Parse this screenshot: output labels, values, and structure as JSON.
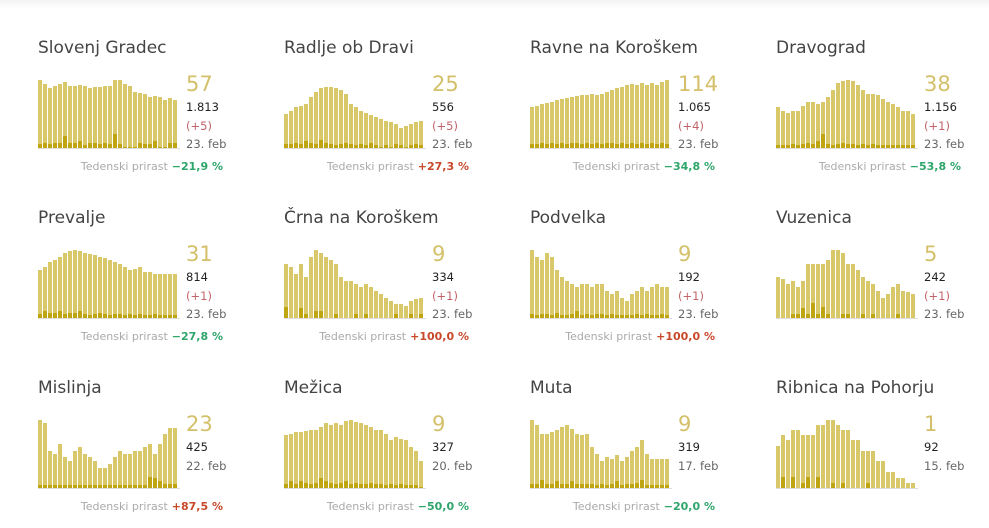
{
  "colors": {
    "bar": "#d9c86a",
    "highlight": "#bfa512",
    "down": "#2ea56b",
    "up": "#c8482a"
  },
  "growth_label": "Tedenski prirast",
  "chart_data": [
    {
      "type": "bar",
      "title": "Slovenj Gradec",
      "big": "57",
      "total": "1.813",
      "delta": "(+5)",
      "date": "23. feb",
      "growth": "−21,9 %",
      "dir": "down",
      "values": [
        100,
        94,
        88,
        91,
        94,
        97,
        91,
        91,
        93,
        91,
        88,
        90,
        90,
        91,
        91,
        100,
        100,
        94,
        91,
        82,
        81,
        79,
        75,
        77,
        75,
        71,
        73,
        71
      ],
      "highlights": [
        6,
        8,
        6,
        8,
        7,
        18,
        8,
        7,
        10,
        5,
        7,
        7,
        6,
        8,
        6,
        20,
        6,
        2,
        2,
        2,
        8,
        6,
        6,
        10,
        2,
        2,
        7,
        7
      ]
    },
    {
      "type": "bar",
      "title": "Radlje ob Dravi",
      "big": "25",
      "total": "556",
      "delta": "(+5)",
      "date": "23. feb",
      "growth": "+27,3 %",
      "dir": "up",
      "values": [
        50,
        55,
        60,
        62,
        65,
        75,
        82,
        88,
        90,
        90,
        88,
        85,
        80,
        65,
        60,
        55,
        52,
        48,
        45,
        42,
        40,
        38,
        35,
        30,
        32,
        35,
        38,
        40
      ],
      "highlights": [
        6,
        6,
        8,
        6,
        10,
        8,
        6,
        12,
        8,
        6,
        4,
        6,
        8,
        6,
        4,
        6,
        4,
        8,
        4,
        2,
        4,
        2,
        6,
        4,
        2,
        4,
        6,
        4
      ]
    },
    {
      "type": "bar",
      "title": "Ravne na Koroškem",
      "big": "114",
      "total": "1.065",
      "delta": "(+4)",
      "date": "23. feb",
      "growth": "−34,8 %",
      "dir": "down",
      "values": [
        60,
        62,
        64,
        66,
        67,
        70,
        72,
        74,
        75,
        76,
        78,
        78,
        80,
        78,
        80,
        82,
        85,
        88,
        90,
        92,
        94,
        92,
        95,
        93,
        95,
        93,
        97,
        100
      ],
      "highlights": [
        6,
        6,
        8,
        6,
        8,
        6,
        8,
        6,
        8,
        8,
        6,
        8,
        6,
        8,
        6,
        8,
        8,
        6,
        8,
        6,
        8,
        6,
        8,
        6,
        8,
        6,
        8,
        6
      ]
    },
    {
      "type": "bar",
      "title": "Dravograd",
      "big": "38",
      "total": "1.156",
      "delta": "(+1)",
      "date": "23. feb",
      "growth": "−53,8 %",
      "dir": "down",
      "values": [
        60,
        55,
        52,
        55,
        55,
        62,
        68,
        68,
        65,
        68,
        75,
        85,
        95,
        98,
        100,
        98,
        92,
        85,
        80,
        80,
        78,
        72,
        68,
        65,
        60,
        55,
        55,
        50
      ],
      "highlights": [
        4,
        4,
        4,
        6,
        4,
        6,
        8,
        6,
        10,
        20,
        6,
        4,
        6,
        8,
        6,
        6,
        4,
        6,
        4,
        6,
        4,
        4,
        4,
        4,
        4,
        4,
        4,
        4
      ]
    },
    {
      "type": "bar",
      "title": "Prevalje",
      "big": "31",
      "total": "814",
      "delta": "(+1)",
      "date": "23. feb",
      "growth": "−27,8 %",
      "dir": "down",
      "values": [
        70,
        75,
        82,
        85,
        90,
        95,
        98,
        100,
        98,
        96,
        94,
        92,
        90,
        88,
        85,
        82,
        80,
        75,
        70,
        72,
        75,
        68,
        68,
        65,
        65,
        65,
        65,
        65
      ],
      "highlights": [
        6,
        10,
        8,
        8,
        10,
        6,
        8,
        8,
        10,
        6,
        4,
        6,
        8,
        6,
        4,
        6,
        6,
        4,
        6,
        4,
        6,
        4,
        4,
        6,
        4,
        4,
        4,
        4
      ]
    },
    {
      "type": "bar",
      "title": "Črna na Koroškem",
      "big": "9",
      "total": "334",
      "delta": "(+1)",
      "date": "23. feb",
      "growth": "+100,0 %",
      "dir": "up",
      "values": [
        80,
        75,
        65,
        80,
        60,
        90,
        100,
        95,
        90,
        85,
        80,
        60,
        55,
        55,
        50,
        45,
        50,
        45,
        40,
        35,
        30,
        25,
        20,
        20,
        18,
        25,
        28,
        30
      ],
      "highlights": [
        16,
        0,
        0,
        14,
        6,
        0,
        10,
        10,
        0,
        0,
        6,
        0,
        0,
        0,
        6,
        0,
        6,
        0,
        0,
        0,
        0,
        0,
        6,
        0,
        0,
        6,
        0,
        6
      ]
    },
    {
      "type": "bar",
      "title": "Podvelka",
      "big": "9",
      "total": "192",
      "delta": "(+1)",
      "date": "23. feb",
      "growth": "+100,0 %",
      "dir": "up",
      "values": [
        100,
        90,
        85,
        95,
        90,
        70,
        60,
        55,
        50,
        45,
        50,
        50,
        45,
        50,
        50,
        40,
        35,
        40,
        30,
        25,
        35,
        40,
        45,
        40,
        45,
        50,
        45,
        45
      ],
      "highlights": [
        6,
        4,
        6,
        6,
        4,
        8,
        4,
        4,
        6,
        10,
        4,
        6,
        4,
        6,
        6,
        4,
        6,
        4,
        4,
        4,
        4,
        6,
        4,
        6,
        4,
        4,
        6,
        4
      ]
    },
    {
      "type": "bar",
      "title": "Vuzenica",
      "big": "5",
      "total": "242",
      "delta": "(+1)",
      "date": "23. feb",
      "growth": "",
      "dir": "",
      "values": [
        60,
        58,
        50,
        55,
        45,
        55,
        80,
        80,
        80,
        80,
        85,
        100,
        100,
        95,
        80,
        80,
        70,
        60,
        55,
        50,
        40,
        30,
        35,
        45,
        50,
        40,
        38,
        35
      ],
      "highlights": [
        0,
        0,
        0,
        6,
        6,
        14,
        6,
        22,
        6,
        16,
        6,
        0,
        0,
        6,
        6,
        0,
        0,
        6,
        0,
        6,
        0,
        0,
        0,
        0,
        6,
        0,
        0,
        0
      ]
    },
    {
      "type": "bar",
      "title": "Mislinja",
      "big": "23",
      "total": "425",
      "delta": "",
      "date": "22. feb",
      "growth": "+87,5 %",
      "dir": "up",
      "values": [
        100,
        95,
        55,
        50,
        65,
        45,
        40,
        55,
        60,
        50,
        45,
        40,
        30,
        30,
        35,
        45,
        55,
        50,
        50,
        55,
        55,
        60,
        65,
        50,
        65,
        80,
        88,
        88
      ],
      "highlights": [
        4,
        4,
        4,
        4,
        4,
        4,
        4,
        4,
        4,
        4,
        4,
        4,
        4,
        4,
        4,
        4,
        4,
        4,
        4,
        4,
        4,
        4,
        16,
        14,
        10,
        6,
        6,
        6
      ]
    },
    {
      "type": "bar",
      "title": "Mežica",
      "big": "9",
      "total": "327",
      "delta": "",
      "date": "20. feb",
      "growth": "−50,0 %",
      "dir": "down",
      "values": [
        78,
        80,
        82,
        82,
        84,
        86,
        85,
        90,
        95,
        92,
        95,
        93,
        98,
        100,
        97,
        96,
        93,
        90,
        86,
        86,
        80,
        70,
        75,
        72,
        70,
        60,
        55,
        40
      ],
      "highlights": [
        6,
        10,
        6,
        10,
        8,
        6,
        8,
        14,
        10,
        8,
        6,
        8,
        10,
        6,
        8,
        6,
        6,
        8,
        6,
        6,
        4,
        6,
        4,
        6,
        4,
        4,
        4,
        2
      ]
    },
    {
      "type": "bar",
      "title": "Muta",
      "big": "9",
      "total": "319",
      "delta": "",
      "date": "17. feb",
      "growth": "−20,0 %",
      "dir": "down",
      "values": [
        100,
        92,
        80,
        80,
        82,
        85,
        90,
        92,
        87,
        80,
        78,
        80,
        60,
        50,
        40,
        45,
        42,
        48,
        40,
        45,
        55,
        60,
        70,
        50,
        43,
        43,
        43,
        43
      ],
      "highlights": [
        6,
        6,
        12,
        6,
        6,
        10,
        6,
        6,
        10,
        6,
        6,
        6,
        6,
        4,
        6,
        4,
        6,
        10,
        4,
        6,
        6,
        8,
        12,
        4,
        4,
        4,
        4,
        4
      ]
    },
    {
      "type": "bar",
      "title": "Ribnica na Pohorju",
      "big": "1",
      "total": "92",
      "delta": "",
      "date": "15. feb",
      "growth": "",
      "dir": "",
      "values": [
        62,
        78,
        70,
        86,
        86,
        78,
        78,
        78,
        93,
        93,
        100,
        100,
        93,
        86,
        86,
        70,
        70,
        55,
        55,
        55,
        39,
        39,
        23,
        23,
        15,
        15,
        8,
        8
      ],
      "highlights": [
        0,
        16,
        0,
        16,
        0,
        8,
        16,
        0,
        16,
        0,
        0,
        8,
        0,
        8,
        0,
        0,
        0,
        0,
        8,
        0,
        0,
        0,
        0,
        0,
        0,
        0,
        0,
        0
      ]
    }
  ]
}
